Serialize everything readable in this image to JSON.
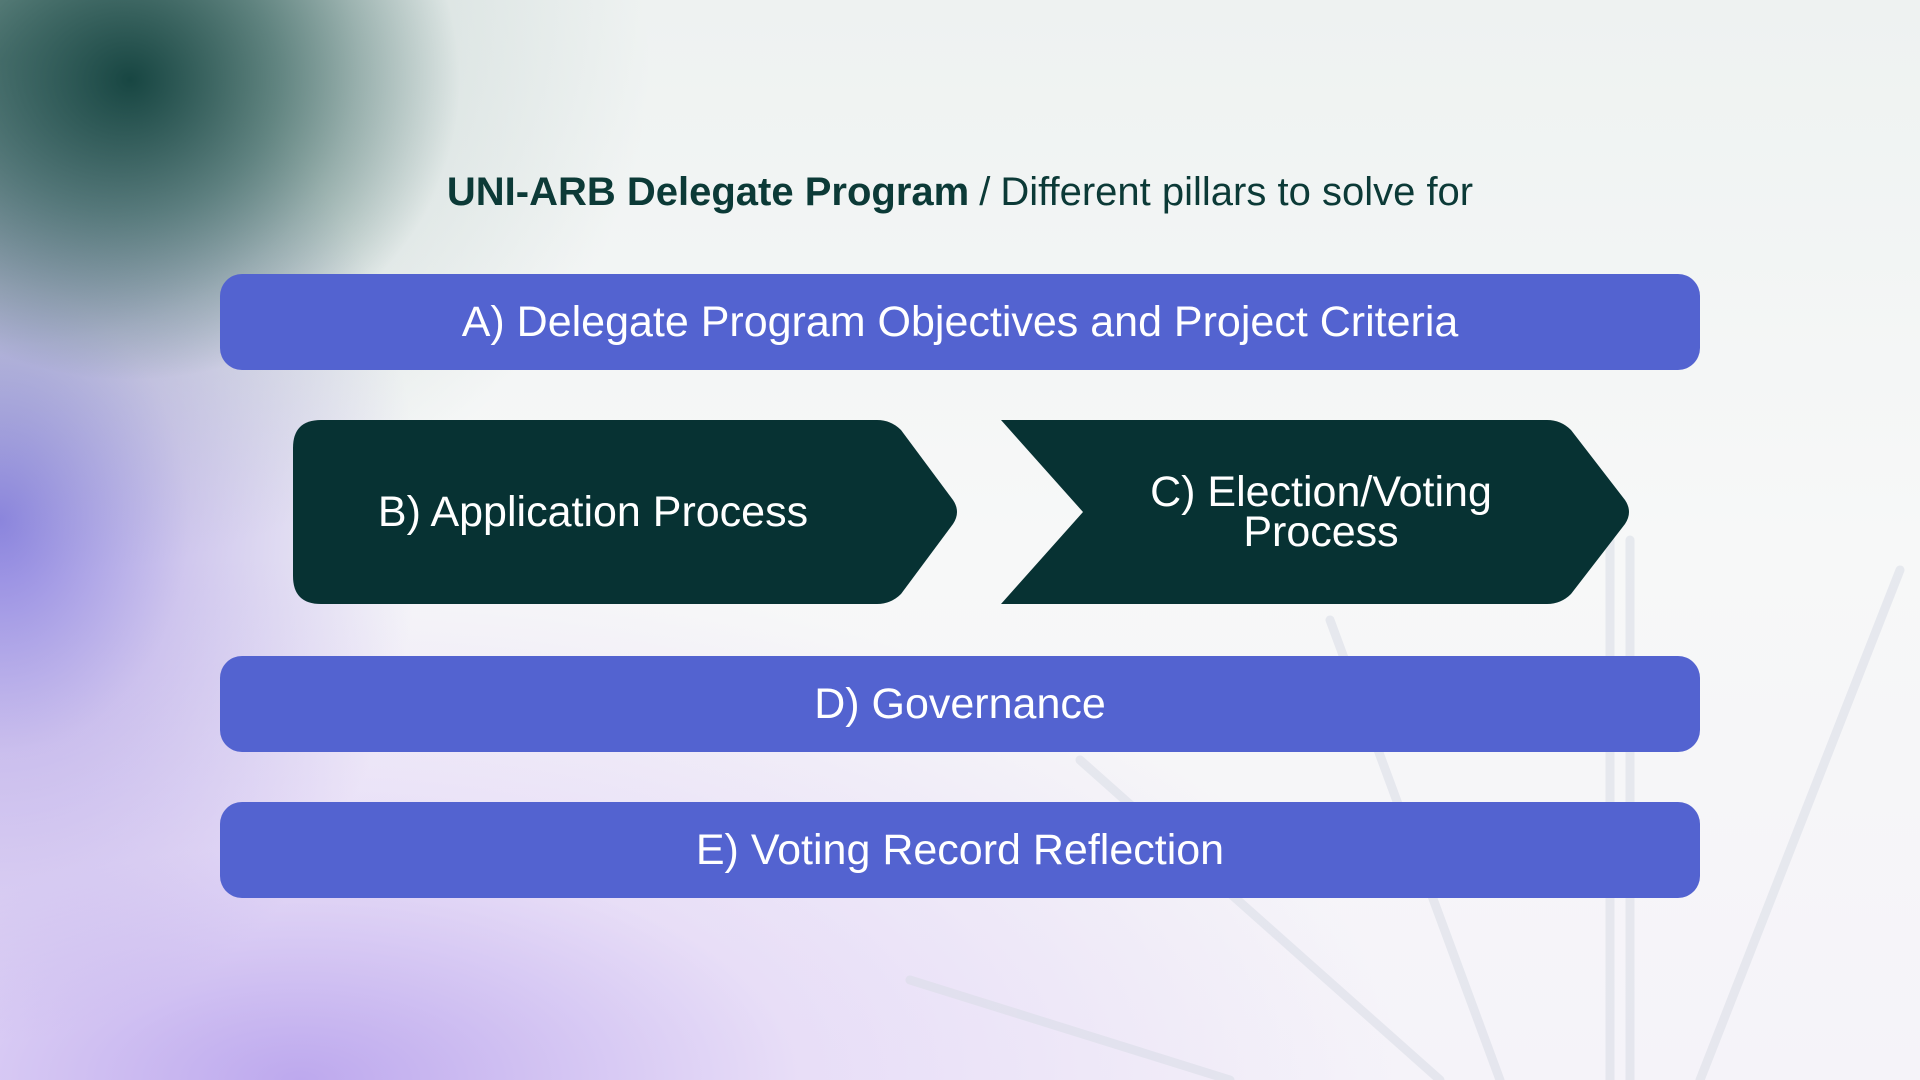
{
  "slide": {
    "title_bold": "UNI-ARB Delegate Program",
    "title_separator": "/",
    "title_rest": "Different pillars to solve for"
  },
  "pillars": {
    "a": "A) Delegate Program Objectives and Project Criteria",
    "b": "B) Application Process",
    "c": "C) Election/Voting Process",
    "d": "D) Governance",
    "e": "E) Voting Record Reflection"
  },
  "colors": {
    "bar": "#5363d0",
    "arrow": "#073233",
    "title": "#0c3a37",
    "text_on_shape": "#ffffff"
  }
}
